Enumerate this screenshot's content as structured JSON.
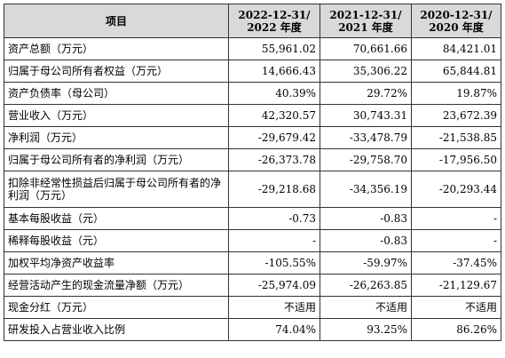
{
  "table": {
    "headers": [
      {
        "line1": "项目",
        "line2": ""
      },
      {
        "line1": "2022-12-31/",
        "line2": "2022 年度"
      },
      {
        "line1": "2021-12-31/",
        "line2": "2021 年度"
      },
      {
        "line1": "2020-12-31/",
        "line2": "2020 年度"
      }
    ],
    "rows": [
      {
        "item": "资产总额（万元）",
        "v2022": "55,961.02",
        "v2021": "70,661.66",
        "v2020": "84,421.01"
      },
      {
        "item": "归属于母公司所有者权益（万元）",
        "v2022": "14,666.43",
        "v2021": "35,306.22",
        "v2020": "65,844.81"
      },
      {
        "item": "资产负债率（母公司）",
        "v2022": "40.39%",
        "v2021": "29.72%",
        "v2020": "19.87%"
      },
      {
        "item": "营业收入（万元）",
        "v2022": "42,320.57",
        "v2021": "30,743.31",
        "v2020": "23,672.39"
      },
      {
        "item": "净利润（万元）",
        "v2022": "-29,679.42",
        "v2021": "-33,478.79",
        "v2020": "-21,538.85"
      },
      {
        "item": "归属于母公司所有者的净利润（万元）",
        "v2022": "-26,373.78",
        "v2021": "-29,758.70",
        "v2020": "-17,956.50"
      },
      {
        "item": "扣除非经常性损益后归属于母公司所有者的净利润（万元）",
        "v2022": "-29,218.68",
        "v2021": "-34,356.19",
        "v2020": "-20,293.44"
      },
      {
        "item": "基本每股收益（元）",
        "v2022": "-0.73",
        "v2021": "-0.83",
        "v2020": "-"
      },
      {
        "item": "稀释每股收益（元）",
        "v2022": "-",
        "v2021": "-0.83",
        "v2020": "-"
      },
      {
        "item": "加权平均净资产收益率",
        "v2022": "-105.55%",
        "v2021": "-59.97%",
        "v2020": "-37.45%"
      },
      {
        "item": "经营活动产生的现金流量净额（万元）",
        "v2022": "-25,974.09",
        "v2021": "-26,263.85",
        "v2020": "-21,129.67"
      },
      {
        "item": "现金分红（万元）",
        "v2022": "不适用",
        "v2021": "不适用",
        "v2020": "不适用"
      },
      {
        "item": "研发投入占营业收入比例",
        "v2022": "74.04%",
        "v2021": "93.25%",
        "v2020": "86.26%"
      }
    ]
  }
}
